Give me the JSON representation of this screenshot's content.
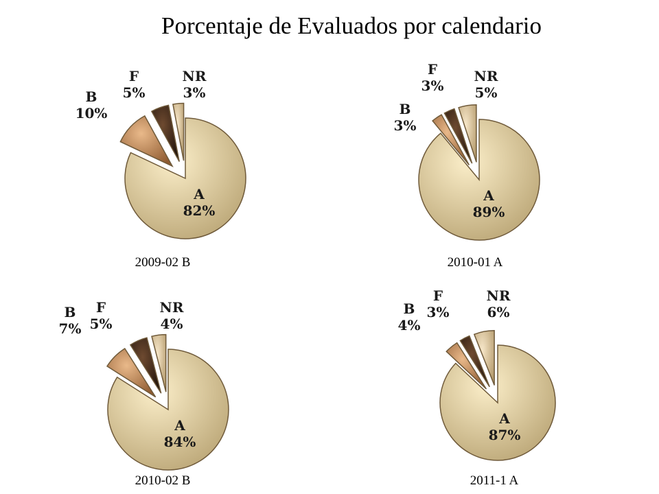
{
  "title": "Porcentaje de Evaluados por calendario",
  "colors": {
    "A": "#f0d79c",
    "B": "#c98a56",
    "F": "#4a3020",
    "NR": "#e2c8a0",
    "A_edge": "#b9a474"
  },
  "chart_data": [
    {
      "type": "pie",
      "caption": "2009-02 B",
      "categories": [
        "A",
        "B",
        "F",
        "NR"
      ],
      "values": [
        82,
        10,
        5,
        3
      ],
      "labels": [
        "82%",
        "10%",
        "5%",
        "3%"
      ]
    },
    {
      "type": "pie",
      "caption": "2010-01 A",
      "categories": [
        "A",
        "B",
        "F",
        "NR"
      ],
      "values": [
        89,
        3,
        3,
        5
      ],
      "labels": [
        "89%",
        "3%",
        "3%",
        "5%"
      ]
    },
    {
      "type": "pie",
      "caption": "2010-02 B",
      "categories": [
        "A",
        "B",
        "F",
        "NR"
      ],
      "values": [
        84,
        7,
        5,
        4
      ],
      "labels": [
        "84%",
        "7%",
        "5%",
        "4%"
      ]
    },
    {
      "type": "pie",
      "caption": "2011-1  A",
      "categories": [
        "A",
        "B",
        "F",
        "NR"
      ],
      "values": [
        87,
        4,
        3,
        6
      ],
      "labels": [
        "87%",
        "4%",
        "3%",
        "6%"
      ]
    }
  ]
}
